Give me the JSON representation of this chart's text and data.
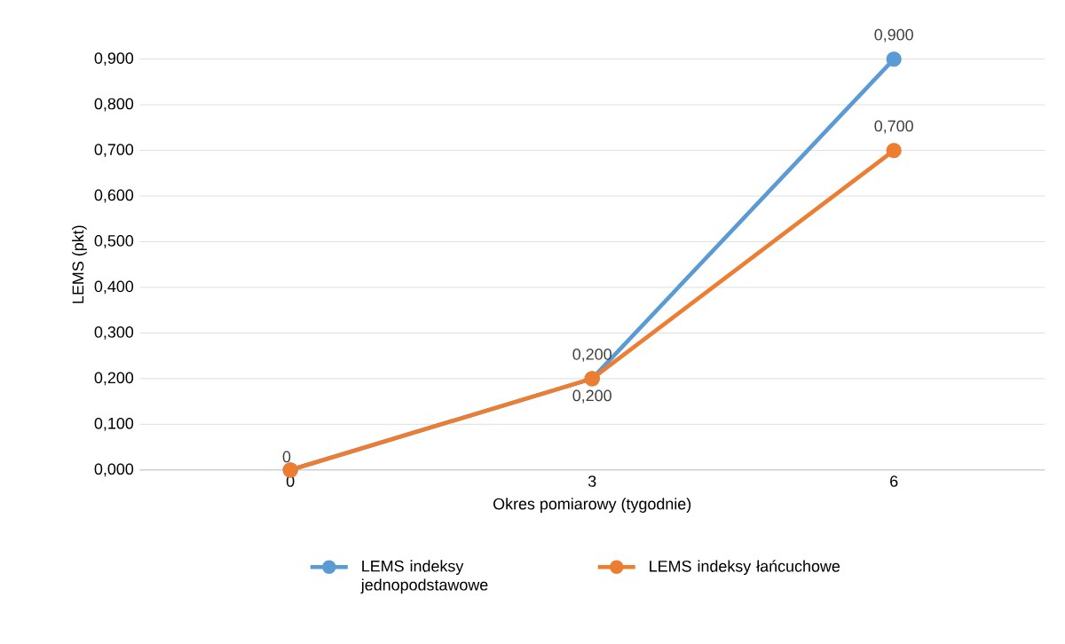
{
  "chart_data": {
    "type": "line",
    "xlabel": "Okres pomiarowy (tygodnie)",
    "ylabel": "LEMS (pkt)",
    "categories": [
      "0",
      "3",
      "6"
    ],
    "series": [
      {
        "name": "LEMS indeksy jednopodstawowe",
        "color": "#5b9bd5",
        "values": [
          0,
          0.2,
          0.9
        ],
        "value_labels": [
          null,
          "0,200",
          "0,900"
        ]
      },
      {
        "name": "LEMS indeksy łańcuchowe",
        "color": "#ed7d31",
        "values": [
          0,
          0.2,
          0.7
        ],
        "value_labels": [
          "0",
          "0,200",
          "0,700"
        ]
      }
    ],
    "ylim": [
      0,
      0.9
    ],
    "yticks": [
      {
        "value": 0,
        "label": "0,000"
      },
      {
        "value": 0.1,
        "label": "0,100"
      },
      {
        "value": 0.2,
        "label": "0,200"
      },
      {
        "value": 0.3,
        "label": "0,300"
      },
      {
        "value": 0.4,
        "label": "0,400"
      },
      {
        "value": 0.5,
        "label": "0,500"
      },
      {
        "value": 0.6,
        "label": "0,600"
      },
      {
        "value": 0.7,
        "label": "0,700"
      },
      {
        "value": 0.8,
        "label": "0,800"
      },
      {
        "value": 0.9,
        "label": "0,900"
      }
    ],
    "grid": "y",
    "legend": "bottom",
    "marker": "circle",
    "line_style": "solid"
  }
}
